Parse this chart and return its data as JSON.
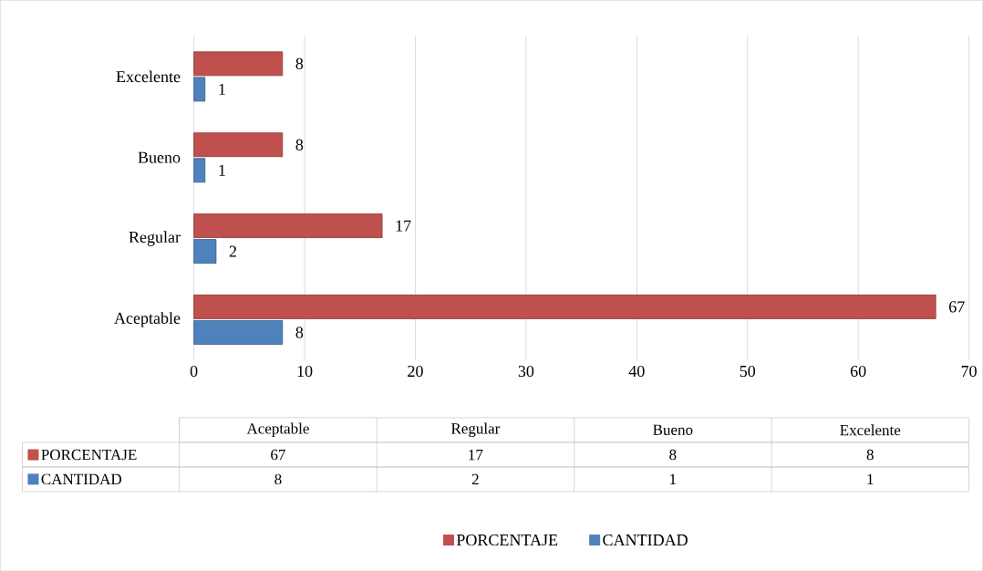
{
  "chart_data": {
    "type": "bar",
    "orientation": "horizontal",
    "categories": [
      "Excelente",
      "Bueno",
      "Regular",
      "Aceptable"
    ],
    "series": [
      {
        "name": "PORCENTAJE",
        "color": "#c0504d",
        "values": [
          8,
          8,
          17,
          67
        ],
        "value_labels": [
          "8",
          "8",
          "17",
          "67"
        ]
      },
      {
        "name": "CANTIDAD",
        "color": "#4f81bd",
        "values": [
          1,
          1,
          2,
          8
        ],
        "value_labels": [
          "1",
          "1",
          "2",
          "8"
        ]
      }
    ],
    "xlim": [
      0,
      70
    ],
    "xticks": [
      0,
      10,
      20,
      30,
      40,
      50,
      60,
      70
    ],
    "grid": "x",
    "legend": "bottom"
  }
}
